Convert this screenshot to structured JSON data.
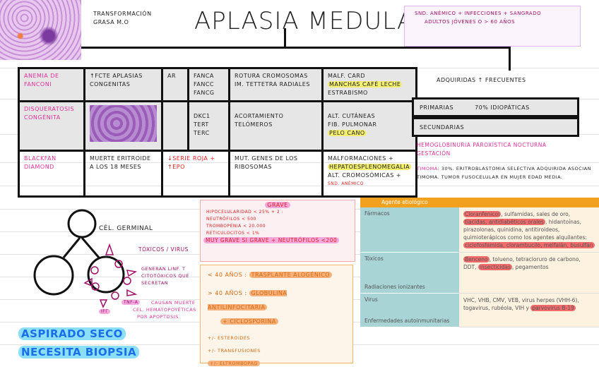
{
  "title": "APLASIA MEDULAR",
  "subtitle": [
    "TRANSFORMACIÓN",
    "GRASA M.O"
  ],
  "pink_note": [
    "SND. ANÉMICO + INFECCIONES + SANGRADO",
    "ADULTOS JÓVENES o > 60 AÑOS"
  ],
  "table": {
    "rows": [
      {
        "name": "ANEMIA DE FANCONI",
        "c1": "↑FCTE APLASIAS CONGENITAS",
        "c2": "AR",
        "c3": [
          "FANCA",
          "FANCC",
          "FANCG"
        ],
        "c4": "ROTURA CROMOSOMAS IM. TETTETRA RADIALES",
        "c5": [
          "MALF. CARD",
          "MANCHAS CAFÉ LECHE",
          "ESTRABISMO"
        ]
      },
      {
        "name": "DISQUERATOSIS CONGÉNITA",
        "c1": "",
        "c2": "",
        "c3": [
          "DKC1",
          "TERT",
          "TERC"
        ],
        "c4": "ACORTAMIENTO TELÓMEROS",
        "c5": [
          "ALT. CUTÁNEAS",
          "FIB. PULMONAR",
          "PELO CANO"
        ]
      },
      {
        "name": "BLACKFAN DIAMOND",
        "c1": "MUERTE ERITROIDE A LOS 18 MESES",
        "c2": "↓SERIE ROJA + ↑EPO",
        "c3": [],
        "c4": "MUT. GENES DE LOS RIBOSOMAS",
        "c5": [
          "MALFORMACIONES +",
          "HEPATOESPLENOMEGALIA",
          "ALT. CROMOSÓMICAS +",
          "SND. ANÉMICO"
        ]
      }
    ]
  },
  "acquired": {
    "heading": "ADQUIRIDAS ↑ FRECUENTES",
    "primary": "PRIMARIAS",
    "primary_note": "70% IDIOPÁTICAS",
    "secondary": "SECUNDARIAS",
    "pnh": [
      "HEMOGLOBINURIA PAROXÍSTICA NOCTURNA",
      "GESTACIÓN"
    ],
    "timoma_label": "TIMOMA",
    "timoma_text": ": 30%. ERITROBLASTOMIA SELECTIVA ADQUIRIDA ASOCIAN TIMOMA. TUMOR FUSOCELULAR EN MUJER EDAD MEDIA."
  },
  "diagram": {
    "germ": "CÉL. GERMINAL",
    "toxics": "TÓXICOS / VIRUS",
    "gen": [
      "GENERAN LINF. T",
      "CITOTÓXICOS QUE",
      "SECRETAN"
    ],
    "tnf": "TNF-α",
    "ifn": "IFγ",
    "death": [
      "CAUSAN MUERTE",
      "CEL. HEMATOPOYÉTICAS",
      "POR APOPTOSIS"
    ]
  },
  "blue": [
    "ASPIRADO SECO",
    "NECESITA BIOPSIA"
  ],
  "grave": {
    "title": "GRAVE",
    "lines": [
      "HIPOCELULARIDAD < 25% + 2 :",
      "NEUTRÓFILOS < 500",
      "TROMBOPENIA < 20.000",
      "RETICULOCITOS < 1%"
    ],
    "muy": "MUY GRAVE SI GRAVE + NEUTRÓFILOS <200"
  },
  "treatment": {
    "lt40": "< 40 AÑOS :",
    "lt40_t": "TRASPLANTE ALOGÉNICO",
    "gt40": "> 40 AÑOS :",
    "gt40_t": "GLOBULINA ANTILINFOCITARIA",
    "cic": "+ CICLOSPORINA",
    "e1": "+/- ESTEROIDES",
    "e2": "+/- TRANSFUSIONES",
    "e3": "+/- ELTROMBOPAG"
  },
  "ref": {
    "header": "Agente etiológico",
    "farm": "Fármacos",
    "farm_h1": "Cloranfenicol",
    "farm_t1": ", sulfamidas, sales de oro, ",
    "farm_h2": "tiacidas, antidiabéticos orales",
    "farm_t2": ", hidantoínas, pirazolonas, quinidina, antitiroideos, quimioterápicos como los agentes alquilantes: ",
    "farm_h3": "ciclofosfamida, clorambucilo, melfalán, busulfán",
    "tox": "Tóxicos",
    "tox_h1": "Benceno",
    "tox_t1": ", tolueno, tetracloruro de carbono, DDT, ",
    "tox_h2": "insecticidas",
    "tox_t2": ", pegamentos",
    "rad": "Radiaciones ionizantes",
    "vir": "Virus",
    "vir_t": "VHC, VHB, CMV, VEB, virus herpes (VHH-6), togavirus, rubéola, VIH y ",
    "vir_h": "parvovirus B-19",
    "auto": "Enfermedades autoinmunitarias"
  },
  "colors": {
    "pink": "#e0309a",
    "orange_header": "#f2a11f",
    "teal": "#a8d4d6",
    "cream": "#fdf1e0"
  }
}
